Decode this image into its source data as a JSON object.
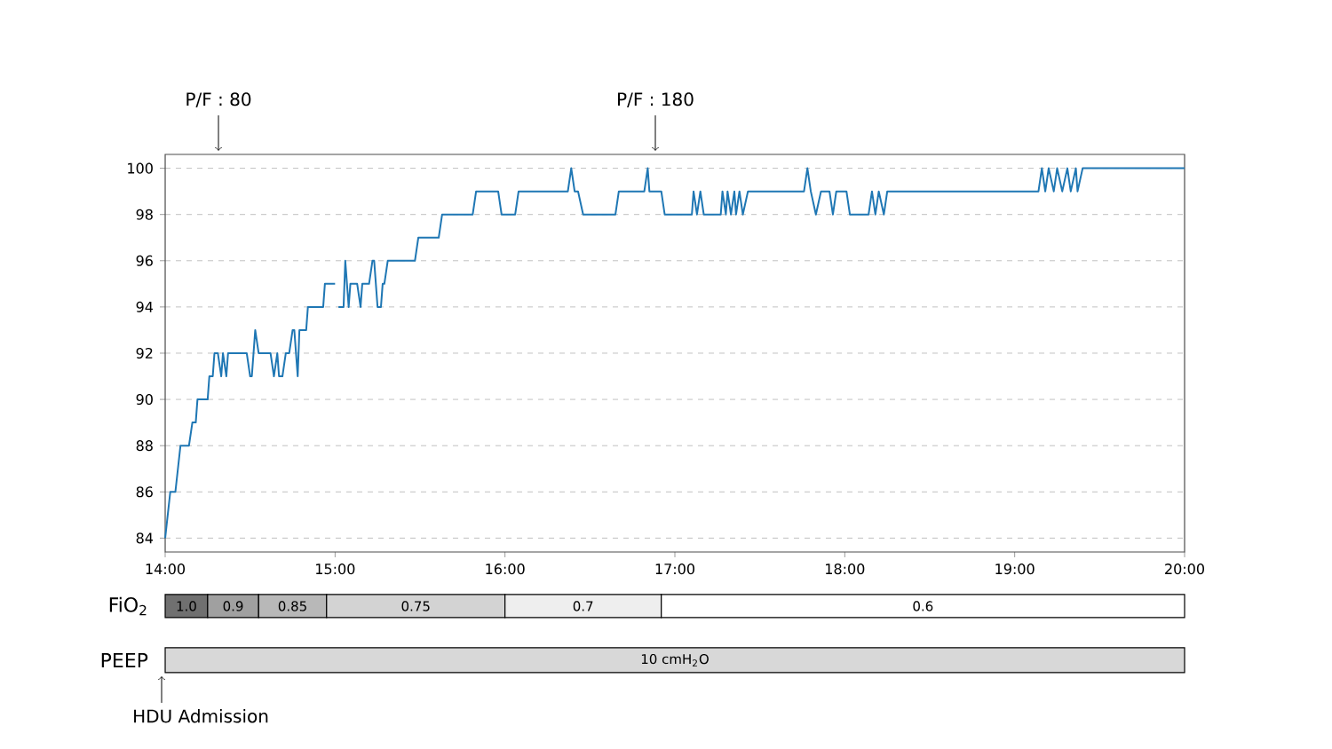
{
  "chart_data": [
    {
      "type": "line",
      "x": [
        14.0,
        14.03,
        14.06,
        14.09,
        14.14,
        14.16,
        14.18,
        14.19,
        14.25,
        14.26,
        14.28,
        14.29,
        14.31,
        14.33,
        14.34,
        14.36,
        14.37,
        14.48,
        14.5,
        14.51,
        14.53,
        14.55,
        14.62,
        14.64,
        14.66,
        14.67,
        14.69,
        14.71,
        14.73,
        14.75,
        14.76,
        14.78,
        14.79,
        14.83,
        14.84,
        14.93,
        14.94,
        15.0,
        15.01,
        15.02,
        15.05,
        15.06,
        15.08,
        15.09,
        15.13,
        15.15,
        15.16,
        15.2,
        15.22,
        15.23,
        15.25,
        15.27,
        15.28,
        15.29,
        15.31,
        15.47,
        15.49,
        15.61,
        15.63,
        15.81,
        15.83,
        15.96,
        15.98,
        16.06,
        16.08,
        16.37,
        16.39,
        16.41,
        16.43,
        16.46,
        16.65,
        16.67,
        16.82,
        16.84,
        16.85,
        16.92,
        16.94,
        17.1,
        17.11,
        17.13,
        17.15,
        17.17,
        17.27,
        17.28,
        17.3,
        17.31,
        17.33,
        17.35,
        17.36,
        17.38,
        17.4,
        17.43,
        17.76,
        17.78,
        17.8,
        17.83,
        17.86,
        17.91,
        17.93,
        17.95,
        18.01,
        18.03,
        18.14,
        18.16,
        18.18,
        18.2,
        18.23,
        18.25,
        19.14,
        19.16,
        19.18,
        19.2,
        19.23,
        19.25,
        19.28,
        19.31,
        19.33,
        19.36,
        19.37,
        19.4,
        20.0
      ],
      "series": [
        {
          "color": "#1f77b4",
          "values": [
            84,
            86,
            86,
            88,
            88,
            89,
            89,
            90,
            90,
            91,
            91,
            92,
            92,
            91,
            92,
            91,
            92,
            92,
            91,
            91,
            93,
            92,
            92,
            91,
            92,
            91,
            91,
            92,
            92,
            93,
            93,
            91,
            93,
            93,
            94,
            94,
            95,
            95,
            null,
            94,
            94,
            96,
            94,
            95,
            95,
            94,
            95,
            95,
            96,
            96,
            94,
            94,
            95,
            95,
            96,
            96,
            97,
            97,
            98,
            98,
            99,
            99,
            98,
            98,
            99,
            99,
            100,
            99,
            99,
            98,
            98,
            99,
            99,
            100,
            99,
            99,
            98,
            98,
            99,
            98,
            99,
            98,
            98,
            99,
            98,
            99,
            98,
            99,
            98,
            99,
            98,
            99,
            99,
            100,
            99,
            98,
            99,
            99,
            98,
            99,
            99,
            98,
            98,
            99,
            98,
            99,
            98,
            99,
            99,
            100,
            99,
            100,
            99,
            100,
            99,
            100,
            99,
            100,
            99,
            100,
            100
          ]
        }
      ],
      "xlim": [
        14,
        20
      ],
      "ylim": [
        83.4,
        100.6
      ],
      "xticks": [
        {
          "value": 14,
          "label": "14:00"
        },
        {
          "value": 15,
          "label": "15:00"
        },
        {
          "value": 16,
          "label": "16:00"
        },
        {
          "value": 17,
          "label": "17:00"
        },
        {
          "value": 18,
          "label": "18:00"
        },
        {
          "value": 19,
          "label": "19:00"
        },
        {
          "value": 20,
          "label": "20:00"
        }
      ],
      "yticks": [
        84,
        86,
        88,
        90,
        92,
        94,
        96,
        98,
        100
      ],
      "grid": "y",
      "annotations": [
        "P/F : 80",
        "P/F : 180"
      ]
    },
    {
      "type": "bar",
      "orientation": "horizontal",
      "categories": [
        "FiO$_{2}$"
      ],
      "series": [
        {
          "name": "1.0",
          "color": "#707070",
          "base": [
            14
          ],
          "values": [
            0.25
          ]
        },
        {
          "name": "0.9",
          "color": "#a0a0a0",
          "base": [
            14.25
          ],
          "values": [
            0.3
          ]
        },
        {
          "name": "0.85",
          "color": "#b8b8b8",
          "base": [
            14.55
          ],
          "values": [
            0.4
          ]
        },
        {
          "name": "0.75",
          "color": "#d3d3d3",
          "base": [
            14.95
          ],
          "values": [
            1.05
          ]
        },
        {
          "name": "0.7",
          "color": "#eeeeee",
          "base": [
            16.0
          ],
          "values": [
            0.92
          ]
        },
        {
          "name": "0.6",
          "color": "#ffffff",
          "base": [
            16.92
          ],
          "values": [
            3.08
          ]
        }
      ],
      "xlim": [
        14,
        20
      ],
      "tick_labels": "y"
    },
    {
      "type": "bar",
      "orientation": "horizontal",
      "categories": [
        "PEEP"
      ],
      "series": [
        {
          "name": "10 cmH$_{2}$O",
          "color": "#d8d8d8",
          "base": [
            14
          ],
          "values": [
            6
          ]
        }
      ],
      "xlim": [
        14,
        20
      ],
      "tick_labels": "y",
      "annotations": [
        "HDU Admission"
      ]
    }
  ]
}
